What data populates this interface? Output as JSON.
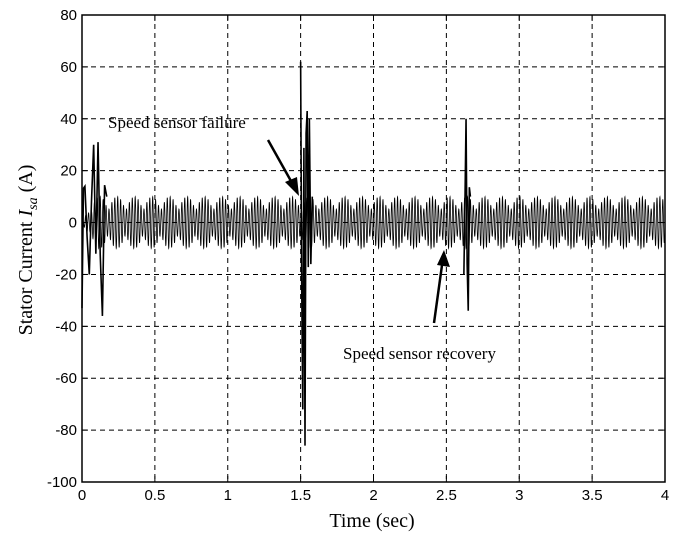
{
  "chart_data": {
    "type": "line",
    "xlabel": "Time (sec)",
    "ylabel_prefix": "Stator Current ",
    "ylabel_var": "I",
    "ylabel_sub": "sa",
    "ylabel_suffix": " (A)",
    "xlim": [
      0,
      4
    ],
    "ylim": [
      -100,
      80
    ],
    "xticks": [
      0,
      0.5,
      1,
      1.5,
      2,
      2.5,
      3,
      3.5,
      4
    ],
    "xtick_labels": [
      "0",
      "0.5",
      "1",
      "1.5",
      "2",
      "2.5",
      "3",
      "3.5",
      "4"
    ],
    "yticks": [
      -100,
      -80,
      -60,
      -40,
      -20,
      0,
      20,
      40,
      60,
      80
    ],
    "ytick_labels": [
      "-100",
      "-80",
      "-60",
      "-40",
      "-20",
      "0",
      "20",
      "40",
      "60",
      "80"
    ],
    "grid": true,
    "series": [
      {
        "color": "#000000",
        "steady_amplitude": 10,
        "supply_frequency_hz": 50,
        "beat_period_s": 0.12,
        "transients": [
          {
            "t": [
              0.0,
              0.02,
              0.05,
              0.08,
              0.11,
              0.14,
              0.17
            ],
            "peaks": [
              -33,
              14,
              -20,
              30,
              31,
              -36,
              10
            ]
          },
          {
            "t": [
              1.5,
              1.515,
              1.53,
              1.545,
              1.56,
              1.58
            ],
            "peaks": [
              62,
              -72,
              -86,
              43,
              40,
              10
            ]
          },
          {
            "t": [
              2.62,
              2.635,
              2.65,
              2.665
            ],
            "peaks": [
              -20,
              40,
              -34,
              10
            ]
          }
        ]
      }
    ],
    "annotations": [
      {
        "text": "Speed sensor failure",
        "arrow_to": {
          "x": 1.5,
          "y": 10
        }
      },
      {
        "text": "Speed sensor recovery",
        "arrow_to": {
          "x": 2.6,
          "y": -10
        }
      }
    ]
  }
}
